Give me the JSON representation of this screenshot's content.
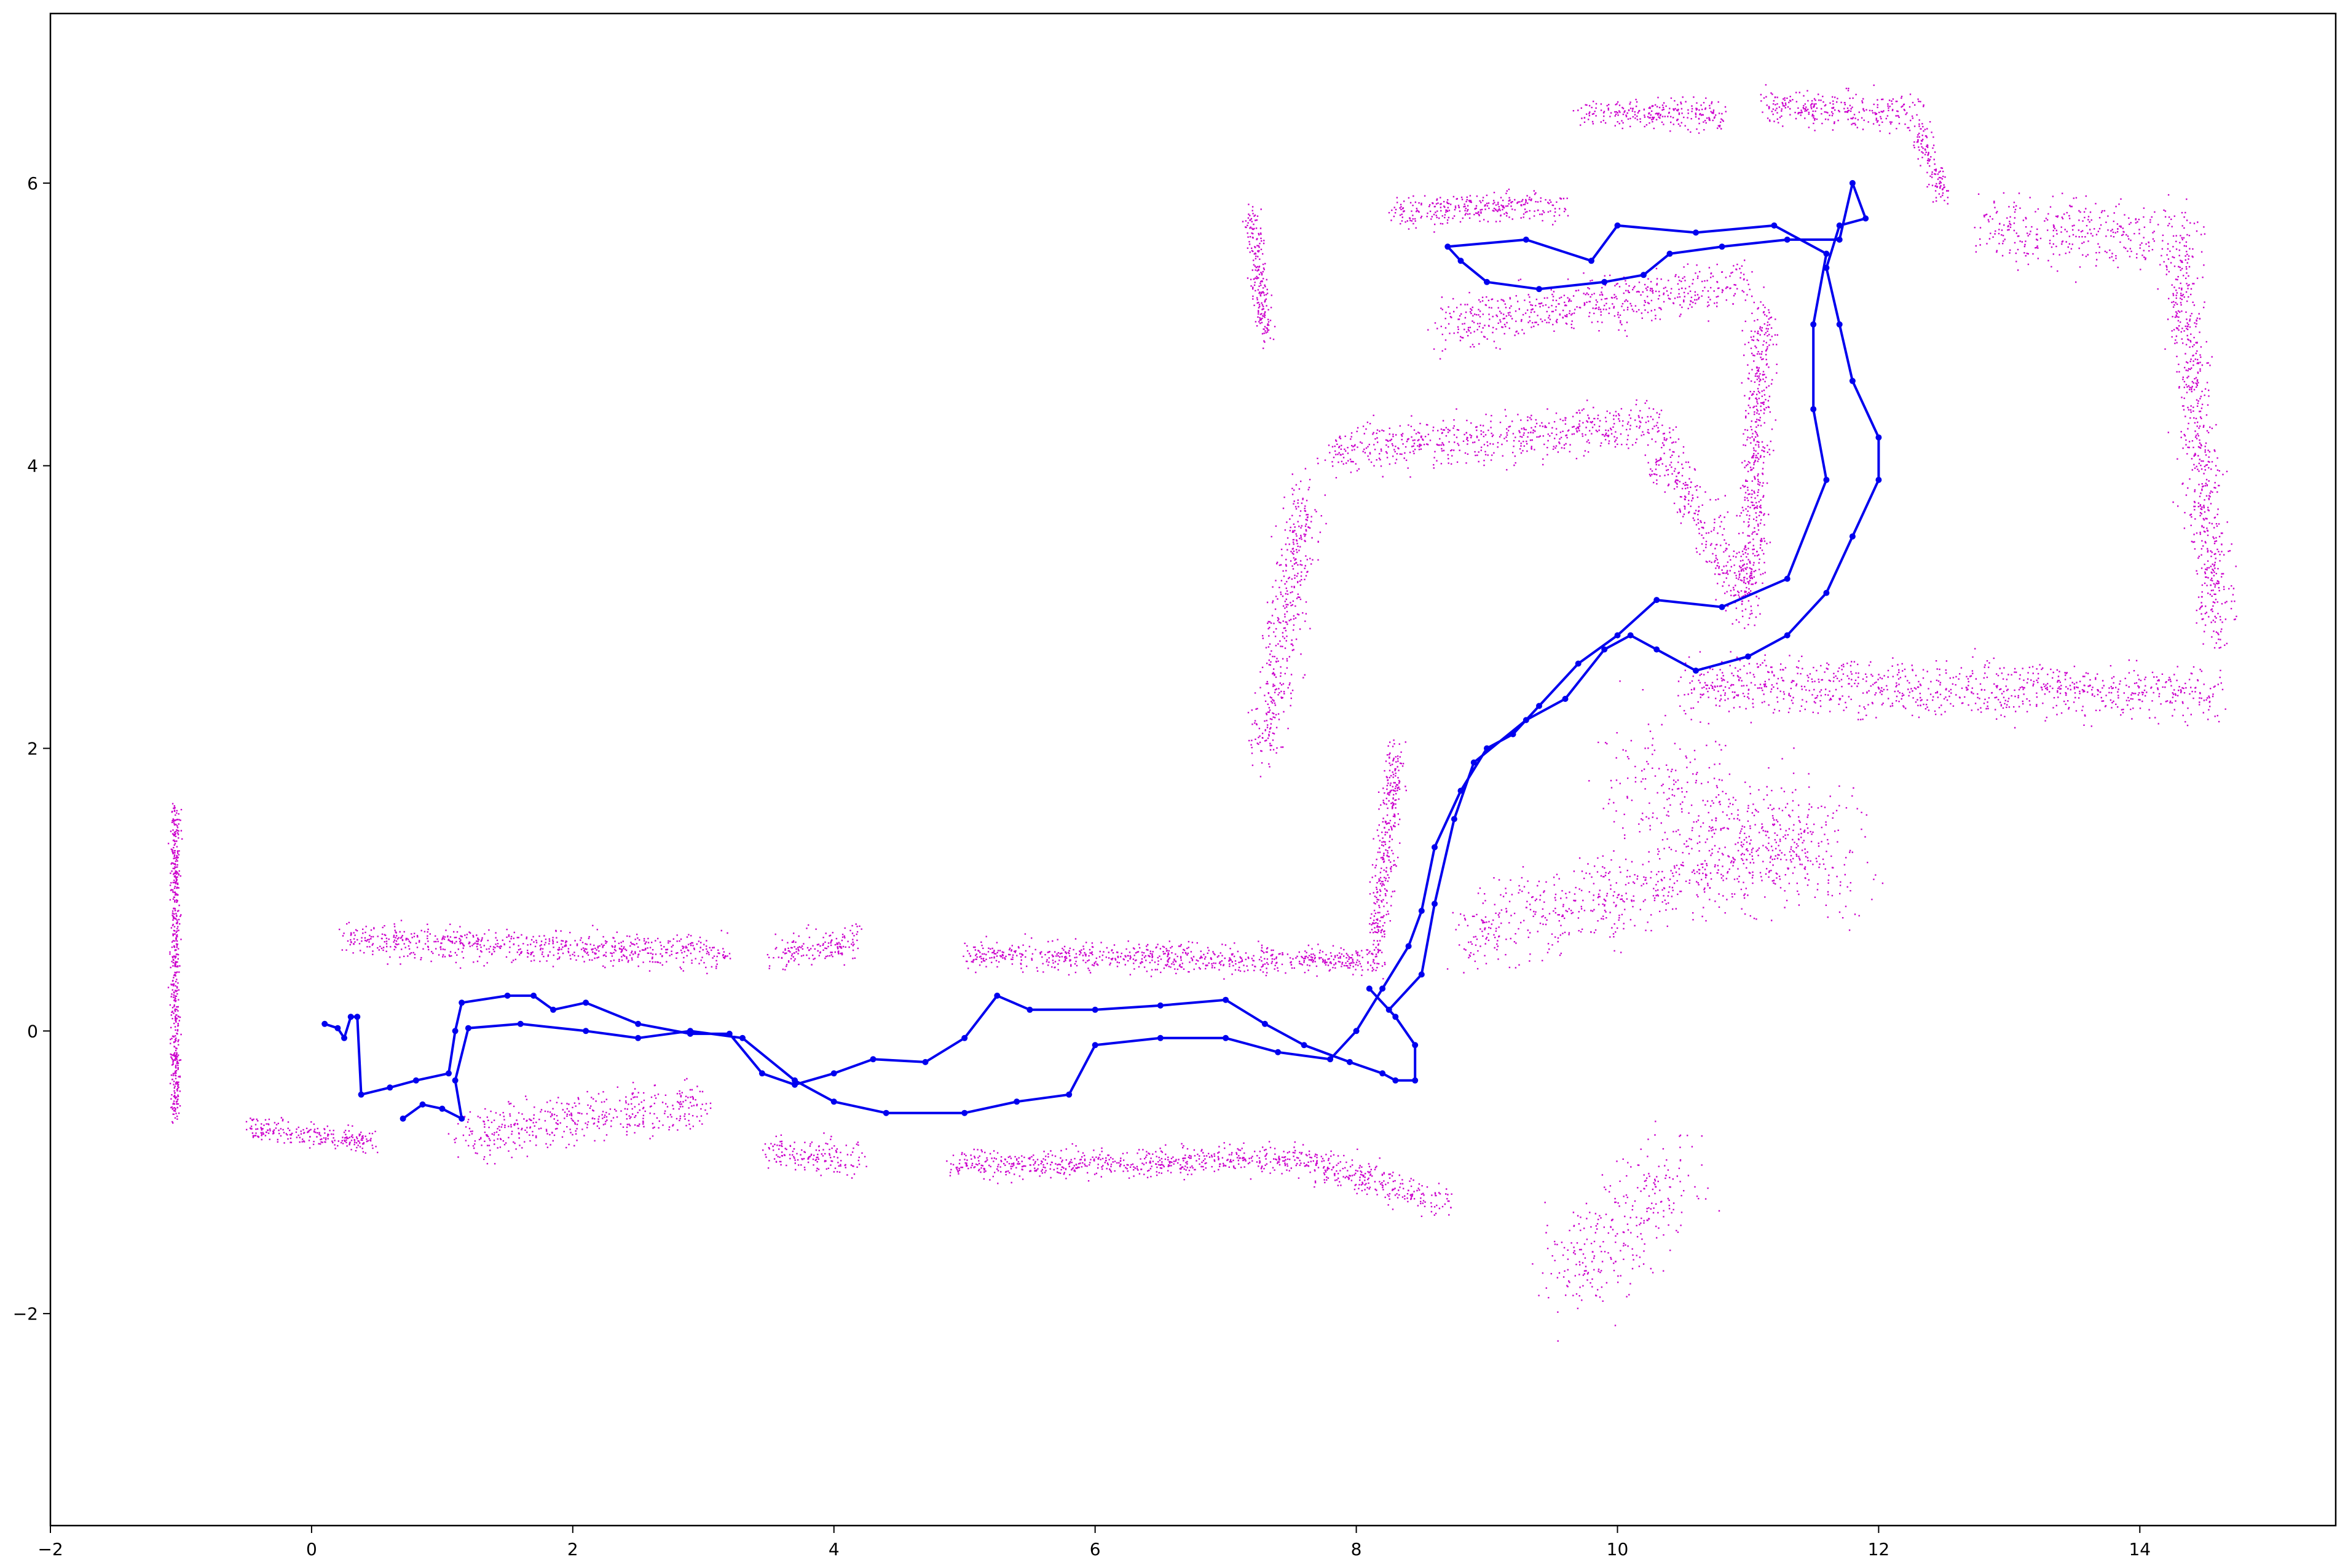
{
  "chart_data": {
    "type": "scatter",
    "title": "",
    "xlabel": "",
    "ylabel": "",
    "xlim": [
      -2.0,
      15.5
    ],
    "ylim": [
      -3.5,
      7.2
    ],
    "grid": false,
    "legend": "none",
    "x_ticks": [
      -2,
      0,
      2,
      4,
      6,
      8,
      10,
      12,
      14
    ],
    "x_tick_labels": [
      "−2",
      "0",
      "2",
      "4",
      "6",
      "8",
      "10",
      "12",
      "14"
    ],
    "y_ticks": [
      -2,
      0,
      2,
      4,
      6
    ],
    "y_tick_labels": [
      "−2",
      "0",
      "2",
      "4",
      "6"
    ],
    "series": [
      {
        "kind": "point-cloud",
        "color": "#cc00cc",
        "segments": [
          {
            "from": [
              0.25,
              0.65
            ],
            "to": [
              3.2,
              0.55
            ],
            "spread": 0.06
          },
          {
            "from": [
              3.5,
              0.55
            ],
            "to": [
              4.2,
              0.65
            ],
            "spread": 0.06
          },
          {
            "from": [
              5.0,
              0.55
            ],
            "to": [
              8.2,
              0.5
            ],
            "spread": 0.05
          },
          {
            "from": [
              -0.5,
              -0.68
            ],
            "to": [
              0.5,
              -0.78
            ],
            "spread": 0.04
          },
          {
            "from": [
              1.1,
              -0.75
            ],
            "to": [
              3.0,
              -0.5
            ],
            "spread": 0.09
          },
          {
            "from": [
              3.5,
              -0.85
            ],
            "to": [
              4.2,
              -0.9
            ],
            "spread": 0.06
          },
          {
            "from": [
              4.9,
              -0.95
            ],
            "to": [
              7.5,
              -0.9
            ],
            "spread": 0.05
          },
          {
            "from": [
              7.5,
              -0.9
            ],
            "to": [
              8.7,
              -1.2
            ],
            "spread": 0.06
          },
          {
            "from": [
              -1.05,
              1.6
            ],
            "to": [
              -1.05,
              -0.6
            ],
            "spread": 0.03
          },
          {
            "from": [
              8.15,
              0.6
            ],
            "to": [
              8.3,
              2.0
            ],
            "spread": 0.07
          },
          {
            "from": [
              7.3,
              2.0
            ],
            "to": [
              7.6,
              3.8
            ],
            "spread": 0.12
          },
          {
            "from": [
              7.8,
              4.1
            ],
            "to": [
              10.3,
              4.3
            ],
            "spread": 0.08
          },
          {
            "from": [
              10.3,
              4.2
            ],
            "to": [
              11.0,
              3.0
            ],
            "spread": 0.12
          },
          {
            "from": [
              11.0,
              3.0
            ],
            "to": [
              11.1,
              5.1
            ],
            "spread": 0.09
          },
          {
            "from": [
              8.6,
              5.0
            ],
            "to": [
              11.0,
              5.3
            ],
            "spread": 0.09
          },
          {
            "from": [
              7.2,
              5.8
            ],
            "to": [
              7.3,
              4.9
            ],
            "spread": 0.05
          },
          {
            "from": [
              8.3,
              5.8
            ],
            "to": [
              9.6,
              5.85
            ],
            "spread": 0.05
          },
          {
            "from": [
              9.7,
              6.5
            ],
            "to": [
              10.8,
              6.5
            ],
            "spread": 0.05
          },
          {
            "from": [
              11.1,
              6.55
            ],
            "to": [
              12.3,
              6.5
            ],
            "spread": 0.06
          },
          {
            "from": [
              12.3,
              6.4
            ],
            "to": [
              12.5,
              5.9
            ],
            "spread": 0.06
          },
          {
            "from": [
              12.8,
              5.7
            ],
            "to": [
              14.4,
              5.6
            ],
            "spread": 0.12
          },
          {
            "from": [
              14.3,
              5.4
            ],
            "to": [
              14.6,
              2.8
            ],
            "spread": 0.12
          },
          {
            "from": [
              10.5,
              2.45
            ],
            "to": [
              14.6,
              2.4
            ],
            "spread": 0.1
          },
          {
            "from": [
              8.8,
              0.7
            ],
            "to": [
              11.5,
              1.3
            ],
            "spread": 0.15
          },
          {
            "from": [
              10.0,
              1.8
            ],
            "to": [
              11.8,
              1.2
            ],
            "spread": 0.25
          },
          {
            "from": [
              9.5,
              -1.8
            ],
            "to": [
              10.5,
              -1.0
            ],
            "spread": 0.2
          }
        ]
      },
      {
        "kind": "trajectory",
        "color": "#0000ee",
        "points": [
          [
            0.1,
            0.05
          ],
          [
            0.2,
            0.02
          ],
          [
            0.25,
            -0.05
          ],
          [
            0.3,
            0.1
          ],
          [
            0.35,
            0.1
          ],
          [
            0.38,
            -0.45
          ],
          [
            0.6,
            -0.4
          ],
          [
            0.8,
            -0.35
          ],
          [
            1.05,
            -0.3
          ],
          [
            1.1,
            0.0
          ],
          [
            1.15,
            0.2
          ],
          [
            1.5,
            0.25
          ],
          [
            1.7,
            0.25
          ],
          [
            1.85,
            0.15
          ],
          [
            2.1,
            0.2
          ],
          [
            2.5,
            0.05
          ],
          [
            2.9,
            -0.02
          ],
          [
            3.2,
            -0.02
          ],
          [
            3.45,
            -0.3
          ],
          [
            3.7,
            -0.38
          ],
          [
            4.0,
            -0.3
          ],
          [
            4.3,
            -0.2
          ],
          [
            4.7,
            -0.22
          ],
          [
            5.0,
            -0.05
          ],
          [
            5.25,
            0.25
          ],
          [
            5.5,
            0.15
          ],
          [
            6.0,
            0.15
          ],
          [
            6.5,
            0.18
          ],
          [
            7.0,
            0.22
          ],
          [
            7.3,
            0.05
          ],
          [
            7.6,
            -0.1
          ],
          [
            7.95,
            -0.22
          ],
          [
            8.2,
            -0.3
          ],
          [
            8.3,
            -0.35
          ],
          [
            8.45,
            -0.35
          ],
          [
            8.45,
            -0.1
          ],
          [
            8.3,
            0.1
          ],
          [
            8.1,
            0.3
          ],
          [
            8.25,
            0.15
          ],
          [
            8.5,
            0.4
          ],
          [
            8.6,
            0.9
          ],
          [
            8.75,
            1.5
          ],
          [
            8.9,
            1.9
          ],
          [
            9.3,
            2.2
          ],
          [
            9.6,
            2.35
          ],
          [
            9.9,
            2.7
          ],
          [
            10.1,
            2.8
          ],
          [
            10.3,
            2.7
          ],
          [
            10.6,
            2.55
          ],
          [
            11.0,
            2.65
          ],
          [
            11.3,
            2.8
          ],
          [
            11.6,
            3.1
          ],
          [
            11.8,
            3.5
          ],
          [
            12.0,
            3.9
          ],
          [
            12.0,
            4.2
          ],
          [
            11.8,
            4.6
          ],
          [
            11.7,
            5.0
          ],
          [
            11.6,
            5.4
          ],
          [
            11.7,
            5.7
          ],
          [
            11.9,
            5.75
          ],
          [
            11.8,
            6.0
          ],
          [
            11.7,
            5.6
          ],
          [
            11.3,
            5.6
          ],
          [
            10.8,
            5.55
          ],
          [
            10.4,
            5.5
          ],
          [
            10.2,
            5.35
          ],
          [
            9.9,
            5.3
          ],
          [
            9.4,
            5.25
          ],
          [
            9.0,
            5.3
          ],
          [
            8.8,
            5.45
          ],
          [
            8.7,
            5.55
          ],
          [
            9.3,
            5.6
          ],
          [
            9.8,
            5.45
          ],
          [
            10.0,
            5.7
          ],
          [
            10.6,
            5.65
          ],
          [
            11.2,
            5.7
          ],
          [
            11.6,
            5.5
          ],
          [
            11.5,
            5.0
          ],
          [
            11.5,
            4.4
          ],
          [
            11.6,
            3.9
          ],
          [
            11.3,
            3.2
          ],
          [
            10.8,
            3.0
          ],
          [
            10.3,
            3.05
          ],
          [
            10.0,
            2.8
          ],
          [
            9.7,
            2.6
          ],
          [
            9.4,
            2.3
          ],
          [
            9.2,
            2.1
          ],
          [
            9.0,
            2.0
          ],
          [
            8.8,
            1.7
          ],
          [
            8.6,
            1.3
          ],
          [
            8.5,
            0.85
          ],
          [
            8.4,
            0.6
          ],
          [
            8.2,
            0.3
          ],
          [
            8.0,
            0.0
          ],
          [
            7.8,
            -0.2
          ],
          [
            7.4,
            -0.15
          ],
          [
            7.0,
            -0.05
          ],
          [
            6.5,
            -0.05
          ],
          [
            6.0,
            -0.1
          ],
          [
            5.8,
            -0.45
          ],
          [
            5.4,
            -0.5
          ],
          [
            5.0,
            -0.58
          ],
          [
            4.4,
            -0.58
          ],
          [
            4.0,
            -0.5
          ],
          [
            3.7,
            -0.35
          ],
          [
            3.3,
            -0.05
          ],
          [
            2.9,
            0.0
          ],
          [
            2.5,
            -0.05
          ],
          [
            2.1,
            0.0
          ],
          [
            1.6,
            0.05
          ],
          [
            1.2,
            0.02
          ],
          [
            1.1,
            -0.35
          ],
          [
            1.15,
            -0.62
          ],
          [
            1.0,
            -0.55
          ],
          [
            0.85,
            -0.52
          ],
          [
            0.7,
            -0.62
          ]
        ]
      }
    ]
  }
}
